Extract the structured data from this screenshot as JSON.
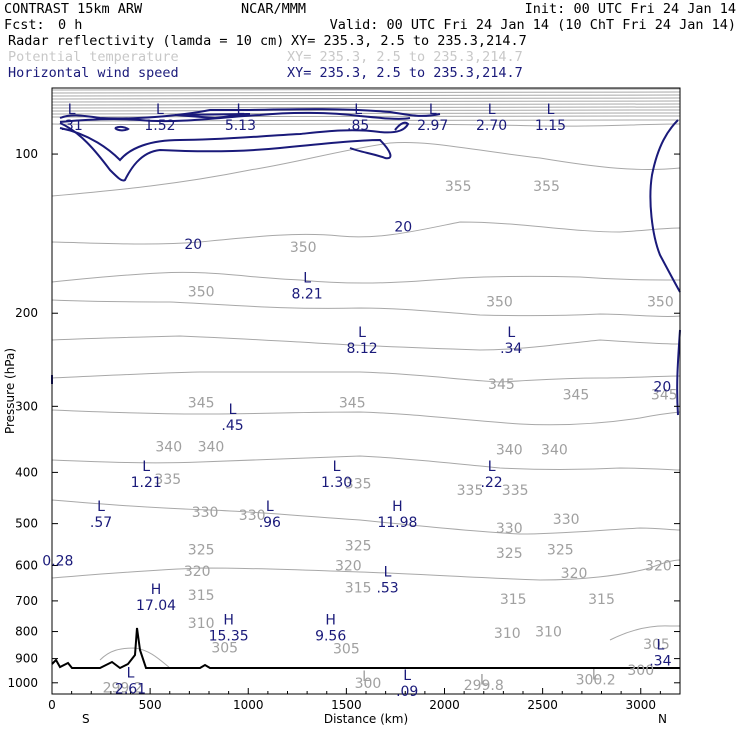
{
  "header": {
    "model": "CONTRAST 15km ARW",
    "org": "NCAR/MMM",
    "init": "Init: 00 UTC Fri 24 Jan 14",
    "fcst_label": "Fcst:",
    "fcst_value": "0 h",
    "valid": "Valid: 00 UTC Fri 24 Jan 14 (10 ChT Fri 24 Jan 14)",
    "field1_name": "Radar reflectivity (lamda = 10 cm)",
    "field1_xy": "XY= 235.3,  2.5 to 235.3,214.7",
    "field2_name": "Potential temperature",
    "field2_xy": "XY= 235.3,  2.5 to 235.3,214.7",
    "field3_name": "Horizontal wind speed",
    "field3_xy": "XY= 235.3,  2.5 to 235.3,214.7"
  },
  "colors": {
    "theta": "#a8a8a8",
    "wind": "#1a1a7a",
    "terrain": "#000000",
    "field2_text": "#c8c8c8"
  },
  "chart_data": {
    "type": "cross-section",
    "xlabel": "Distance (km)",
    "ylabel": "Pressure (hPa)",
    "xlim": [
      0,
      3200
    ],
    "ylim": [
      1050,
      75
    ],
    "x_ticks": [
      "0",
      "500",
      "1000",
      "1500",
      "2000",
      "2500",
      "3000"
    ],
    "y_ticks": [
      "100",
      "200",
      "300",
      "400",
      "500",
      "600",
      "700",
      "800",
      "900",
      "1000"
    ],
    "x_end_labels": [
      "S",
      "N"
    ],
    "theta_contour_labels": [
      {
        "text": "355",
        "x": 2070,
        "p": 115
      },
      {
        "text": "355",
        "x": 2520,
        "p": 115
      },
      {
        "text": "350",
        "x": 1280,
        "p": 150
      },
      {
        "text": "350",
        "x": 760,
        "p": 182
      },
      {
        "text": "350",
        "x": 2280,
        "p": 190
      },
      {
        "text": "350",
        "x": 3100,
        "p": 190
      },
      {
        "text": "345",
        "x": 760,
        "p": 295
      },
      {
        "text": "345",
        "x": 1530,
        "p": 295
      },
      {
        "text": "345",
        "x": 2290,
        "p": 272
      },
      {
        "text": "345",
        "x": 2670,
        "p": 285
      },
      {
        "text": "345",
        "x": 3120,
        "p": 285
      },
      {
        "text": "340",
        "x": 595,
        "p": 357
      },
      {
        "text": "340",
        "x": 810,
        "p": 357
      },
      {
        "text": "340",
        "x": 2330,
        "p": 362
      },
      {
        "text": "340",
        "x": 2560,
        "p": 362
      },
      {
        "text": "335",
        "x": 590,
        "p": 412
      },
      {
        "text": "335",
        "x": 1560,
        "p": 420
      },
      {
        "text": "335",
        "x": 2130,
        "p": 432
      },
      {
        "text": "335",
        "x": 2360,
        "p": 432
      },
      {
        "text": "330",
        "x": 780,
        "p": 475
      },
      {
        "text": "330",
        "x": 1020,
        "p": 482
      },
      {
        "text": "330",
        "x": 2330,
        "p": 510
      },
      {
        "text": "330",
        "x": 2620,
        "p": 490
      },
      {
        "text": "325",
        "x": 760,
        "p": 560
      },
      {
        "text": "325",
        "x": 1560,
        "p": 550
      },
      {
        "text": "325",
        "x": 2330,
        "p": 568
      },
      {
        "text": "325",
        "x": 2590,
        "p": 560
      },
      {
        "text": "320",
        "x": 740,
        "p": 615
      },
      {
        "text": "320",
        "x": 1510,
        "p": 600
      },
      {
        "text": "320",
        "x": 2660,
        "p": 620
      },
      {
        "text": "320",
        "x": 3090,
        "p": 600
      },
      {
        "text": "315",
        "x": 760,
        "p": 682
      },
      {
        "text": "315",
        "x": 1560,
        "p": 660
      },
      {
        "text": "315",
        "x": 2350,
        "p": 695
      },
      {
        "text": "315",
        "x": 2800,
        "p": 695
      },
      {
        "text": "310",
        "x": 760,
        "p": 770
      },
      {
        "text": "310",
        "x": 2320,
        "p": 805
      },
      {
        "text": "310",
        "x": 2530,
        "p": 800
      },
      {
        "text": "305",
        "x": 880,
        "p": 858
      },
      {
        "text": "305",
        "x": 1500,
        "p": 862
      },
      {
        "text": "305",
        "x": 3080,
        "p": 845
      },
      {
        "text": "300",
        "x": 3000,
        "p": 945
      },
      {
        "text": "300",
        "x": 1610,
        "p": 1000
      },
      {
        "text": "299.2",
        "x": 360,
        "p": 1020
      },
      {
        "text": "299.8",
        "x": 2200,
        "p": 1010
      },
      {
        "text": "300.2",
        "x": 2770,
        "p": 985
      },
      {
        "text": "L",
        "x": 1600,
        "p": 970
      },
      {
        "text": "L",
        "x": 2200,
        "p": 985
      },
      {
        "text": "L",
        "x": 2770,
        "p": 965
      }
    ],
    "wind_contour_labels": [
      {
        "text": "20",
        "x": 720,
        "p": 148
      },
      {
        "text": "20",
        "x": 1790,
        "p": 137
      },
      {
        "text": "20",
        "x": 3110,
        "p": 275
      }
    ],
    "extrema": [
      {
        "type": "L",
        "value": ".31",
        "x": 100,
        "p": 84
      },
      {
        "type": "L",
        "value": "1.52",
        "x": 550,
        "p": 84
      },
      {
        "type": "L",
        "value": "5.13",
        "x": 960,
        "p": 84
      },
      {
        "type": "L",
        "value": ".85",
        "x": 1560,
        "p": 84
      },
      {
        "type": "L",
        "value": "2.97",
        "x": 1940,
        "p": 84
      },
      {
        "type": "L",
        "value": "2.70",
        "x": 2240,
        "p": 84
      },
      {
        "type": "L",
        "value": "1.15",
        "x": 2540,
        "p": 84
      },
      {
        "type": "L",
        "value": "8.21",
        "x": 1300,
        "p": 175
      },
      {
        "type": "L",
        "value": "8.12",
        "x": 1580,
        "p": 222
      },
      {
        "type": "L",
        "value": ".34",
        "x": 2340,
        "p": 222
      },
      {
        "type": "L",
        "value": ".45",
        "x": 920,
        "p": 310
      },
      {
        "type": "L",
        "value": "1.21",
        "x": 480,
        "p": 398
      },
      {
        "type": "L",
        "value": "1.30",
        "x": 1450,
        "p": 398
      },
      {
        "type": "L",
        "value": ".22",
        "x": 2240,
        "p": 398
      },
      {
        "type": "L",
        "value": ".57",
        "x": 250,
        "p": 473
      },
      {
        "type": "L",
        "value": ".96",
        "x": 1110,
        "p": 473
      },
      {
        "type": "H",
        "value": "11.98",
        "x": 1760,
        "p": 473
      },
      {
        "type": "",
        "value": "0.28",
        "x": 30,
        "p": 560
      },
      {
        "type": "L",
        "value": ".53",
        "x": 1710,
        "p": 630
      },
      {
        "type": "H",
        "value": "17.04",
        "x": 530,
        "p": 680
      },
      {
        "type": "H",
        "value": "15.35",
        "x": 900,
        "p": 775
      },
      {
        "type": "H",
        "value": "9.56",
        "x": 1420,
        "p": 775
      },
      {
        "type": "L",
        "value": ".34",
        "x": 3100,
        "p": 865
      },
      {
        "type": "L",
        "value": "2.61",
        "x": 400,
        "p": 978
      },
      {
        "type": "L",
        "value": ".09",
        "x": 1810,
        "p": 987
      }
    ]
  }
}
